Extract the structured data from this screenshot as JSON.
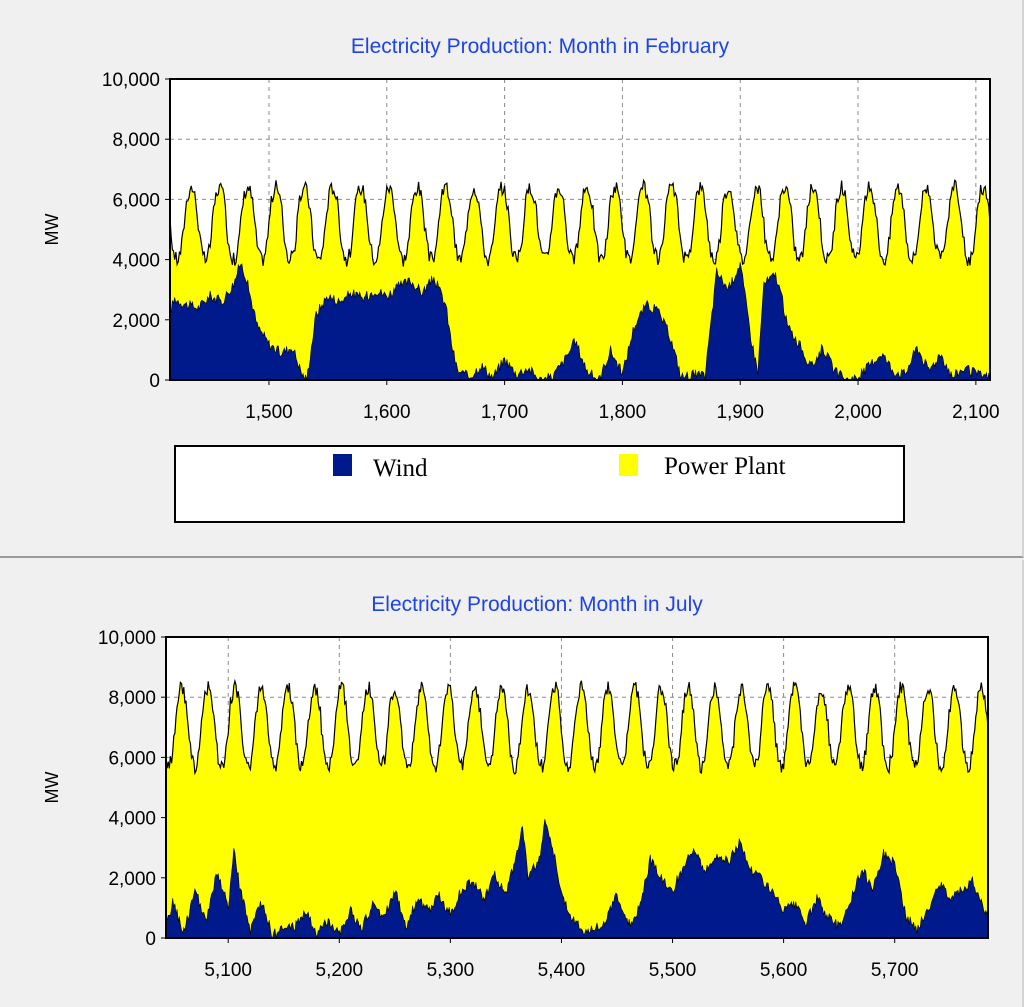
{
  "colors": {
    "wind": "#001a8c",
    "power_plant": "#ffff00",
    "title": "#1f44e6",
    "background": "#f0f0f0",
    "plot_background": "#ffffff",
    "outline": "#000000",
    "grid": "#8c8c8c"
  },
  "legend": {
    "wind_label": "Wind",
    "power_plant_label": "Power Plant"
  },
  "chart_data": [
    {
      "type": "area",
      "title": "Electricity Production: Month in February",
      "ylabel": "MW",
      "xlabel": "",
      "xlim": [
        1416,
        2112
      ],
      "ylim": [
        0,
        10000
      ],
      "yticks": [
        0,
        2000,
        4000,
        6000,
        8000,
        10000
      ],
      "ytick_labels": [
        "0",
        "2,000",
        "4,000",
        "6,000",
        "8,000",
        "10,000"
      ],
      "xticks": [
        1500,
        1600,
        1700,
        1800,
        1900,
        2000,
        2100
      ],
      "xtick_labels": [
        "1,500",
        "1,600",
        "1,700",
        "1,800",
        "1,900",
        "2,000",
        "2,100"
      ],
      "grid": true,
      "stacked": true,
      "legend_position": "bottom",
      "series": [
        {
          "name": "Wind",
          "x": [
            1416,
            1420,
            1430,
            1440,
            1450,
            1460,
            1470,
            1476,
            1480,
            1490,
            1500,
            1510,
            1520,
            1528,
            1532,
            1540,
            1550,
            1560,
            1570,
            1580,
            1590,
            1600,
            1610,
            1620,
            1630,
            1640,
            1650,
            1655,
            1660,
            1670,
            1680,
            1690,
            1700,
            1710,
            1720,
            1730,
            1740,
            1750,
            1760,
            1770,
            1780,
            1790,
            1800,
            1810,
            1820,
            1830,
            1840,
            1850,
            1860,
            1870,
            1880,
            1890,
            1900,
            1910,
            1915,
            1920,
            1930,
            1935,
            1940,
            1950,
            1960,
            1970,
            1980,
            1990,
            2000,
            2010,
            2020,
            2030,
            2040,
            2050,
            2060,
            2070,
            2080,
            2090,
            2100,
            2112
          ],
          "values": [
            2300,
            2700,
            2500,
            2400,
            2800,
            2600,
            3200,
            3900,
            3500,
            1800,
            1200,
            900,
            1100,
            200,
            0,
            2200,
            2800,
            2600,
            2900,
            2700,
            3000,
            2800,
            3100,
            3300,
            2900,
            3400,
            2500,
            1200,
            300,
            100,
            500,
            100,
            700,
            200,
            400,
            0,
            100,
            600,
            1300,
            300,
            0,
            1000,
            200,
            1800,
            2500,
            2300,
            1500,
            100,
            200,
            100,
            3600,
            3000,
            3900,
            1200,
            300,
            3200,
            3500,
            2800,
            1800,
            1200,
            400,
            1100,
            300,
            0,
            100,
            500,
            900,
            300,
            200,
            1100,
            300,
            900,
            100,
            400,
            200,
            100
          ]
        },
        {
          "name": "Power Plant",
          "mean_total": 5200,
          "daily_peak_total": 6600,
          "daily_trough_total": 4200,
          "period_hours": 24
        }
      ]
    },
    {
      "type": "area",
      "title": "Electricity Production: Month in July",
      "ylabel": "MW",
      "xlabel": "",
      "xlim": [
        5044,
        5784
      ],
      "ylim": [
        0,
        10000
      ],
      "yticks": [
        0,
        2000,
        4000,
        6000,
        8000,
        10000
      ],
      "ytick_labels": [
        "0",
        "2,000",
        "4,000",
        "6,000",
        "8,000",
        "10,000"
      ],
      "xticks": [
        5100,
        5200,
        5300,
        5400,
        5500,
        5600,
        5700
      ],
      "xtick_labels": [
        "5,100",
        "5,200",
        "5,300",
        "5,400",
        "5,500",
        "5,600",
        "5,700"
      ],
      "grid": true,
      "stacked": true,
      "legend_position": "none",
      "series": [
        {
          "name": "Wind",
          "x": [
            5044,
            5050,
            5060,
            5070,
            5080,
            5090,
            5100,
            5105,
            5110,
            5120,
            5130,
            5140,
            5150,
            5160,
            5170,
            5180,
            5190,
            5200,
            5210,
            5220,
            5230,
            5240,
            5250,
            5260,
            5270,
            5280,
            5290,
            5300,
            5310,
            5320,
            5330,
            5340,
            5350,
            5360,
            5365,
            5370,
            5380,
            5385,
            5390,
            5400,
            5410,
            5420,
            5430,
            5440,
            5450,
            5460,
            5470,
            5480,
            5490,
            5500,
            5510,
            5520,
            5530,
            5540,
            5550,
            5560,
            5570,
            5580,
            5590,
            5600,
            5610,
            5620,
            5630,
            5640,
            5650,
            5660,
            5670,
            5680,
            5690,
            5700,
            5710,
            5720,
            5730,
            5740,
            5750,
            5760,
            5770,
            5784
          ],
          "values": [
            300,
            1200,
            200,
            1600,
            500,
            2200,
            1000,
            2900,
            1800,
            200,
            1200,
            100,
            300,
            400,
            900,
            100,
            600,
            200,
            900,
            300,
            1100,
            700,
            1600,
            400,
            1300,
            900,
            1400,
            800,
            1600,
            1900,
            1300,
            2100,
            1400,
            2900,
            3700,
            2000,
            2600,
            3900,
            3400,
            1500,
            600,
            200,
            300,
            600,
            1400,
            400,
            1000,
            2600,
            2000,
            1600,
            2400,
            2900,
            2200,
            2800,
            2500,
            3200,
            2300,
            2000,
            1500,
            900,
            1100,
            500,
            1300,
            700,
            400,
            1200,
            2300,
            1700,
            2800,
            2500,
            700,
            300,
            900,
            1800,
            1400,
            1600,
            1900,
            700
          ]
        },
        {
          "name": "Power Plant",
          "mean_total": 7000,
          "daily_peak_total": 8200,
          "daily_trough_total": 5600,
          "period_hours": 24
        }
      ]
    }
  ]
}
